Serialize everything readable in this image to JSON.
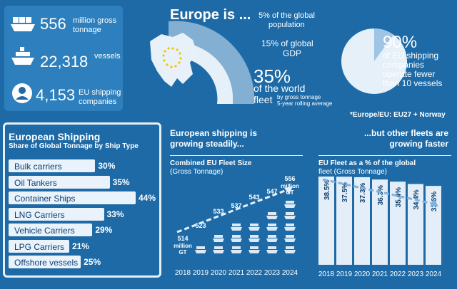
{
  "stats": [
    {
      "value": "556",
      "label_l1": "million gross",
      "label_l2": "tonnage",
      "icon": "container-ship-icon"
    },
    {
      "value": "22,318",
      "label_l1": "vessels",
      "label_l2": "",
      "icon": "cruise-ship-icon"
    },
    {
      "value": "4,153",
      "label_l1": "EU shipping",
      "label_l2": "companies",
      "icon": "person-icon"
    }
  ],
  "europe": {
    "title": "Europe is ...",
    "population_l1": "5% of the global",
    "population_l2": "population",
    "gdp_l1": "15% of global",
    "gdp_l2": "GDP",
    "fleet_pct": "35%",
    "fleet_l1": "of the world",
    "fleet_l2": "fleet",
    "fleet_note_l1": "by gross tonnage",
    "fleet_note_l2": "5-year rolling average",
    "companies_pct": "90%",
    "companies_l1": "of EU shipping",
    "companies_l2": "companies",
    "companies_l3": "operate fewer",
    "companies_l4": "than 10 vessels",
    "footnote": "*Europe/EU: EU27 + Norway"
  },
  "shipping_panel": {
    "title": "European Shipping",
    "subtitle": "Share of Global Tonnage by Ship Type"
  },
  "growth": {
    "left_l1": "European shipping is",
    "left_l2": "growing steadily...",
    "right_l1": "...but other fleets are",
    "right_l2": "growing faster",
    "fleet_title_l1": "Combined EU Fleet Size",
    "fleet_title_l2": "(Gross Tonnage)",
    "share_title_l1": "EU Fleet as a % of the global",
    "share_title_l2": "fleet (Gross Tonnage)",
    "first_unit_l2": "million",
    "first_unit_l3": "GT",
    "last_unit_l2": "million",
    "last_unit_l3": "GT"
  },
  "colors": {
    "background": "#1d6aa6",
    "panel": "#2d80bd",
    "bar": "#eaf3fb",
    "dark_text": "#0d3f73"
  },
  "chart_data": [
    {
      "type": "bar",
      "title": "European Shipping",
      "subtitle": "Share of Global Tonnage by Ship Type",
      "categories": [
        "Bulk carriers",
        "Oil Tankers",
        "Container Ships",
        "LNG Carriers",
        "Vehicle Carriers",
        "LPG Carriers",
        "Offshore vessels"
      ],
      "values": [
        30,
        35,
        44,
        33,
        29,
        21,
        25
      ],
      "value_labels": [
        "30%",
        "35%",
        "44%",
        "33%",
        "29%",
        "21%",
        "25%"
      ],
      "orientation": "horizontal",
      "xlim": [
        0,
        44
      ]
    },
    {
      "type": "bar",
      "title": "Combined EU Fleet Size",
      "subtitle": "(Gross Tonnage)",
      "categories": [
        "2018",
        "2019",
        "2020",
        "2021",
        "2022",
        "2023",
        "2024"
      ],
      "values": [
        514,
        523,
        533,
        537,
        543,
        547,
        556
      ],
      "value_labels": [
        "514",
        "523",
        "533",
        "537",
        "543",
        "547",
        "556"
      ],
      "unit": "million GT",
      "ylim": [
        500,
        560
      ]
    },
    {
      "type": "bar",
      "title": "EU Fleet as a % of the global fleet",
      "subtitle": "(Gross Tonnage)",
      "categories": [
        "2018",
        "2019",
        "2020",
        "2021",
        "2022",
        "2023",
        "2024"
      ],
      "values": [
        38.5,
        37.5,
        37.3,
        36.3,
        35.4,
        34.4,
        33.6
      ],
      "value_labels": [
        "38.5%",
        "37.5%",
        "37.3%",
        "36.3%",
        "35.4%",
        "34.4%",
        "33.6%"
      ],
      "ylim": [
        0,
        40
      ]
    }
  ]
}
